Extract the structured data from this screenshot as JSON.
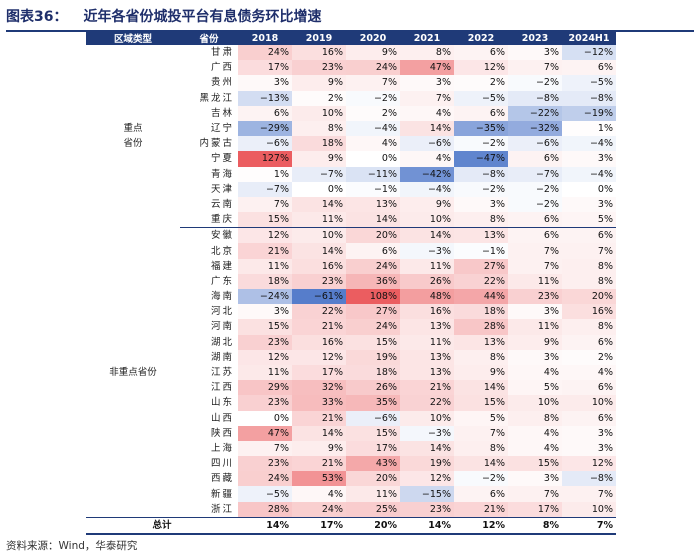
{
  "title": {
    "number": "图表36：",
    "text": "近年各省份城投平台有息债务环比增速"
  },
  "header": {
    "category": "区域类型",
    "province": "省份",
    "years": [
      "2018",
      "2019",
      "2020",
      "2021",
      "2022",
      "2023",
      "2024H1"
    ]
  },
  "colors": {
    "header_bg": "#1f3a78",
    "positive": "#e8474a",
    "negative": "#3f6bc4"
  },
  "groups": [
    {
      "category": "重点\n省份",
      "rows": [
        {
          "province": "甘肃",
          "values": [
            24,
            16,
            9,
            8,
            6,
            3,
            -12
          ]
        },
        {
          "province": "广西",
          "values": [
            17,
            23,
            24,
            47,
            12,
            7,
            6
          ]
        },
        {
          "province": "贵州",
          "values": [
            3,
            9,
            7,
            3,
            2,
            -2,
            -5
          ]
        },
        {
          "province": "黑龙江",
          "values": [
            -13,
            2,
            -2,
            7,
            -5,
            -8,
            -8
          ]
        },
        {
          "province": "吉林",
          "values": [
            6,
            10,
            2,
            4,
            6,
            -22,
            -19
          ]
        },
        {
          "province": "辽宁",
          "values": [
            -29,
            8,
            -4,
            14,
            -35,
            -32,
            1
          ]
        },
        {
          "province": "内蒙古",
          "values": [
            -6,
            18,
            4,
            -6,
            -2,
            -6,
            -4
          ]
        },
        {
          "province": "宁夏",
          "values": [
            127,
            9,
            0,
            4,
            -47,
            6,
            3
          ]
        },
        {
          "province": "青海",
          "values": [
            1,
            -7,
            -11,
            -42,
            -8,
            -7,
            -4
          ]
        },
        {
          "province": "天津",
          "values": [
            -7,
            0,
            -1,
            -4,
            -2,
            -2,
            0
          ]
        },
        {
          "province": "云南",
          "values": [
            7,
            14,
            13,
            9,
            3,
            -2,
            3
          ]
        },
        {
          "province": "重庆",
          "values": [
            15,
            11,
            14,
            10,
            8,
            6,
            5
          ]
        }
      ]
    },
    {
      "category": "非重点省份",
      "rows": [
        {
          "province": "安徽",
          "values": [
            12,
            10,
            20,
            14,
            13,
            6,
            6
          ]
        },
        {
          "province": "北京",
          "values": [
            21,
            14,
            6,
            -3,
            -1,
            7,
            7
          ]
        },
        {
          "province": "福建",
          "values": [
            11,
            16,
            24,
            11,
            27,
            7,
            8
          ]
        },
        {
          "province": "广东",
          "values": [
            18,
            23,
            36,
            26,
            22,
            11,
            8
          ]
        },
        {
          "province": "海南",
          "values": [
            -24,
            -61,
            108,
            48,
            44,
            23,
            20
          ]
        },
        {
          "province": "河北",
          "values": [
            3,
            22,
            27,
            16,
            18,
            3,
            16
          ]
        },
        {
          "province": "河南",
          "values": [
            15,
            21,
            24,
            13,
            28,
            11,
            8
          ]
        },
        {
          "province": "湖北",
          "values": [
            23,
            16,
            15,
            11,
            13,
            9,
            6
          ]
        },
        {
          "province": "湖南",
          "values": [
            12,
            12,
            19,
            13,
            8,
            3,
            2
          ]
        },
        {
          "province": "江苏",
          "values": [
            11,
            17,
            18,
            13,
            9,
            4,
            4
          ]
        },
        {
          "province": "江西",
          "values": [
            29,
            32,
            26,
            21,
            14,
            5,
            6
          ]
        },
        {
          "province": "山东",
          "values": [
            23,
            33,
            35,
            22,
            15,
            10,
            10
          ]
        },
        {
          "province": "山西",
          "values": [
            0,
            21,
            -6,
            10,
            5,
            8,
            6
          ]
        },
        {
          "province": "陕西",
          "values": [
            47,
            14,
            15,
            -3,
            7,
            4,
            3
          ]
        },
        {
          "province": "上海",
          "values": [
            7,
            9,
            17,
            14,
            8,
            4,
            3
          ]
        },
        {
          "province": "四川",
          "values": [
            23,
            21,
            43,
            19,
            14,
            15,
            12
          ]
        },
        {
          "province": "西藏",
          "values": [
            24,
            53,
            20,
            12,
            -2,
            3,
            -8
          ]
        },
        {
          "province": "新疆",
          "values": [
            -5,
            4,
            11,
            -15,
            6,
            7,
            7
          ]
        },
        {
          "province": "浙江",
          "values": [
            28,
            24,
            25,
            23,
            21,
            17,
            10
          ]
        }
      ]
    }
  ],
  "total": {
    "label": "总计",
    "values": [
      14,
      17,
      20,
      14,
      12,
      8,
      7
    ]
  },
  "source": "资料来源：Wind，华泰研究"
}
